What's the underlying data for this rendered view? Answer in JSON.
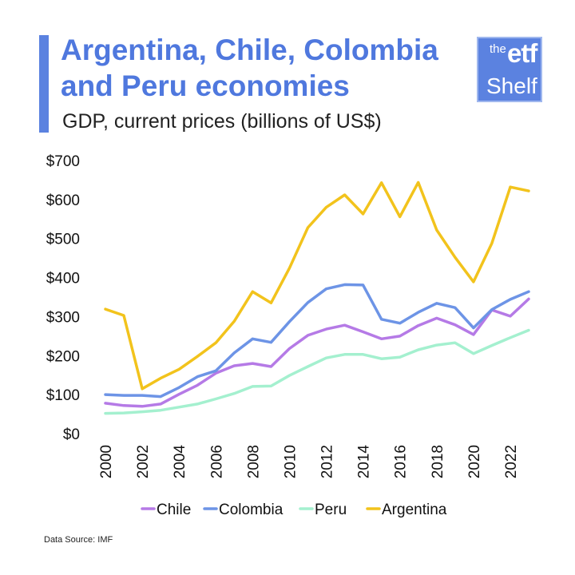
{
  "title": "Argentina, Chile, Colombia and Peru economies",
  "subtitle": "GDP, current prices (billions of US$)",
  "logo": {
    "top": "the",
    "mid": "etf",
    "bottom": "Shelf"
  },
  "source": "Data Source: IMF",
  "colors": {
    "accent": "#5b82e0",
    "title": "#4f78de"
  },
  "chart_data": {
    "type": "line",
    "x": [
      2000,
      2001,
      2002,
      2003,
      2004,
      2005,
      2006,
      2007,
      2008,
      2009,
      2010,
      2011,
      2012,
      2013,
      2014,
      2015,
      2016,
      2017,
      2018,
      2019,
      2020,
      2021,
      2022,
      2023
    ],
    "xticks": [
      "2000",
      "2002",
      "2004",
      "2006",
      "2008",
      "2010",
      "2012",
      "2014",
      "2016",
      "2018",
      "2020",
      "2022"
    ],
    "yticks": [
      "$0",
      "$100",
      "$200",
      "$300",
      "$400",
      "$500",
      "$600",
      "$700"
    ],
    "ylim": [
      0,
      700
    ],
    "grid": false,
    "legend": "bottom",
    "series": [
      {
        "name": "Chile",
        "color": "#b57ae6",
        "values": [
          78,
          72,
          70,
          76,
          101,
          124,
          155,
          174,
          180,
          172,
          218,
          252,
          268,
          278,
          261,
          243,
          250,
          277,
          296,
          279,
          254,
          317,
          301,
          345
        ]
      },
      {
        "name": "Colombia",
        "color": "#6d94e6",
        "values": [
          100,
          98,
          98,
          95,
          118,
          146,
          161,
          207,
          243,
          234,
          287,
          336,
          371,
          382,
          381,
          293,
          283,
          311,
          334,
          323,
          271,
          318,
          344,
          364
        ]
      },
      {
        "name": "Peru",
        "color": "#a4f0cf",
        "values": [
          52,
          53,
          56,
          60,
          68,
          76,
          89,
          103,
          121,
          122,
          149,
          172,
          194,
          203,
          203,
          192,
          196,
          215,
          227,
          233,
          205,
          226,
          246,
          265
        ]
      },
      {
        "name": "Argentina",
        "color": "#f2c31c",
        "values": [
          319,
          303,
          115,
          142,
          165,
          198,
          233,
          288,
          364,
          335,
          424,
          528,
          580,
          612,
          563,
          643,
          556,
          644,
          522,
          452,
          389,
          488,
          632,
          622
        ]
      }
    ]
  }
}
